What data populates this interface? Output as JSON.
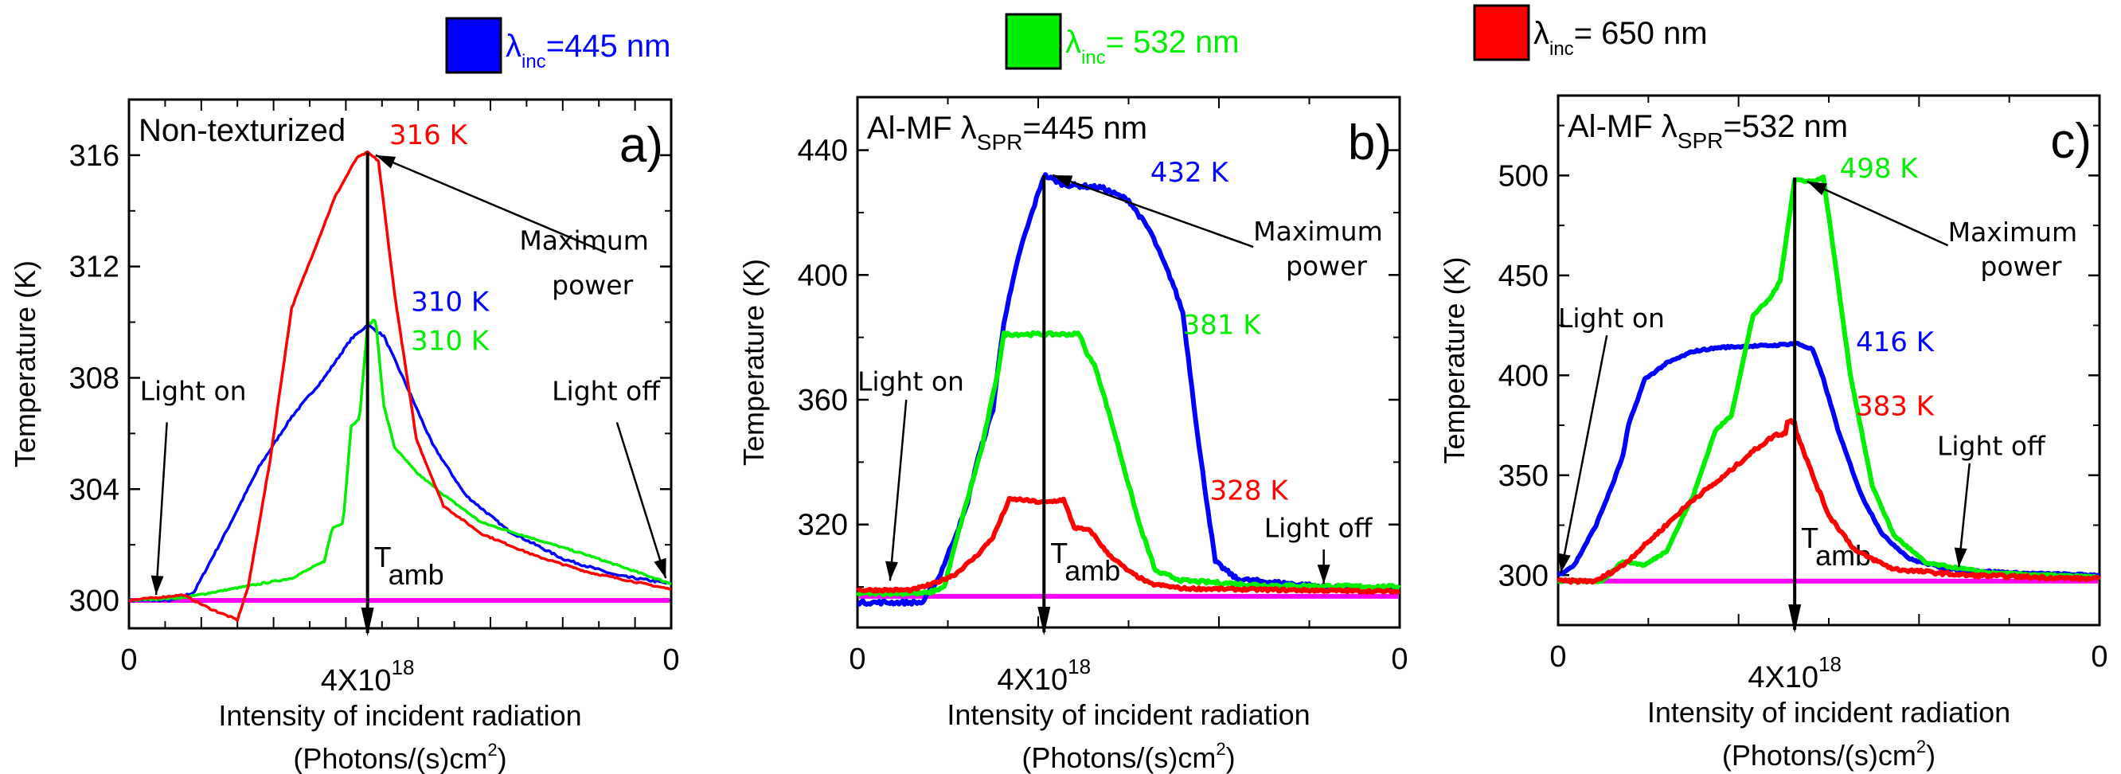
{
  "chart_data": [
    {
      "type": "line",
      "panel_letter": "a)",
      "title": "Non-texturized",
      "xlabel": "Intensity of incident radiation",
      "xlabel_units": "(Photons/(s)cm",
      "xlabel_units_sup": "2",
      "xlabel_units_end": ")",
      "ylabel": "Temperature (K)",
      "ylim": [
        299,
        318
      ],
      "yticks": [
        300,
        304,
        308,
        312,
        316
      ],
      "yminor": [
        302,
        306,
        310,
        314,
        318
      ],
      "xticks": [
        {
          "pos": 0,
          "label": "0"
        },
        {
          "pos": 0.44,
          "label": "4X10",
          "sup": "18"
        },
        {
          "pos": 1,
          "label": "0"
        }
      ],
      "xminor_count": 14,
      "peak_x": 0.44,
      "tamb": 300,
      "tamb_label": "T",
      "tamb_sub": "amb",
      "series": [
        {
          "name": "λinc=445 nm",
          "color": "#0000ff",
          "noise": 0.35,
          "points": [
            [
              0,
              300
            ],
            [
              0.08,
              300
            ],
            [
              0.12,
              300.3
            ],
            [
              0.18,
              302.5
            ],
            [
              0.24,
              304.8
            ],
            [
              0.3,
              306.6
            ],
            [
              0.36,
              308.0
            ],
            [
              0.41,
              309.4
            ],
            [
              0.44,
              309.9
            ],
            [
              0.47,
              309.5
            ],
            [
              0.51,
              307.8
            ],
            [
              0.56,
              305.6
            ],
            [
              0.62,
              303.8
            ],
            [
              0.7,
              302.5
            ],
            [
              0.8,
              301.5
            ],
            [
              0.9,
              300.9
            ],
            [
              1,
              300.6
            ]
          ]
        },
        {
          "name": "λinc=532 nm",
          "color": "#00ee00",
          "noise": 0.25,
          "points": [
            [
              0,
              300
            ],
            [
              0.1,
              300.1
            ],
            [
              0.3,
              300.8
            ],
            [
              0.34,
              301.2
            ],
            [
              0.36,
              301.4
            ],
            [
              0.375,
              302.6
            ],
            [
              0.395,
              302.8
            ],
            [
              0.41,
              306.3
            ],
            [
              0.425,
              306.5
            ],
            [
              0.44,
              309.9
            ],
            [
              0.455,
              310.1
            ],
            [
              0.47,
              307
            ],
            [
              0.49,
              305.5
            ],
            [
              0.53,
              304.6
            ],
            [
              0.58,
              303.8
            ],
            [
              0.65,
              302.8
            ],
            [
              0.75,
              302.2
            ],
            [
              0.85,
              301.6
            ],
            [
              1,
              300.6
            ]
          ]
        },
        {
          "name": "λinc=650 nm",
          "color": "#ff0000",
          "noise": 0.25,
          "points": [
            [
              0,
              300
            ],
            [
              0.1,
              300.2
            ],
            [
              0.15,
              299.7
            ],
            [
              0.2,
              299.3
            ],
            [
              0.22,
              300.5
            ],
            [
              0.26,
              305
            ],
            [
              0.3,
              310.5
            ],
            [
              0.34,
              312.5
            ],
            [
              0.38,
              314.5
            ],
            [
              0.42,
              315.9
            ],
            [
              0.44,
              316.1
            ],
            [
              0.46,
              315.8
            ],
            [
              0.49,
              311
            ],
            [
              0.53,
              305.8
            ],
            [
              0.58,
              303.4
            ],
            [
              0.65,
              302.4
            ],
            [
              0.75,
              301.6
            ],
            [
              0.85,
              301.0
            ],
            [
              1,
              300.4
            ]
          ]
        }
      ],
      "value_labels": [
        {
          "text": "316 K",
          "color": "#ff0000",
          "x": 0.48,
          "y": 316.4
        },
        {
          "text": "310 K",
          "color": "#0000ff",
          "x": 0.52,
          "y": 310.4
        },
        {
          "text": "310 K",
          "color": "#00ee00",
          "x": 0.52,
          "y": 309.0
        }
      ],
      "annotations": [
        {
          "text": "Maximum",
          "x": 0.72,
          "y": 312.6
        },
        {
          "text": "power",
          "x": 0.78,
          "y": 311.0
        },
        {
          "text": "Light on",
          "x": 0.02,
          "y": 307.2
        },
        {
          "text": "Light off",
          "x": 0.78,
          "y": 307.2
        }
      ],
      "arrows": [
        {
          "from": [
            0.88,
            312.5
          ],
          "to": [
            0.455,
            316.0
          ]
        },
        {
          "from": [
            0.07,
            306.4
          ],
          "to": [
            0.05,
            300.2
          ]
        },
        {
          "from": [
            0.9,
            306.4
          ],
          "to": [
            0.99,
            300.8
          ]
        }
      ]
    },
    {
      "type": "line",
      "panel_letter": "b)",
      "title": "Al-MF λ",
      "title_sub": "SPR",
      "title_end": "=445 nm",
      "xlabel": "Intensity of incident radiation",
      "xlabel_units": "(Photons/(s)cm",
      "xlabel_units_sup": "2",
      "xlabel_units_end": ")",
      "ylabel": "Temperature (K)",
      "ylim": [
        287,
        457
      ],
      "yticks": [
        320,
        360,
        400,
        440
      ],
      "yminor": [
        300,
        340,
        380,
        420
      ],
      "xticks": [
        {
          "pos": 0,
          "label": "0"
        },
        {
          "pos": 0.344,
          "label": "4X10",
          "sup": "18"
        },
        {
          "pos": 1,
          "label": "0"
        }
      ],
      "xminor_count": 5,
      "peak_x": 0.344,
      "tamb": 297,
      "tamb_label": "T",
      "tamb_sub": "amb",
      "series": [
        {
          "name": "λinc=445 nm",
          "color": "#0000ff",
          "noise": 0.6,
          "points": [
            [
              0,
              295
            ],
            [
              0.12,
              295
            ],
            [
              0.15,
              303
            ],
            [
              0.2,
              325
            ],
            [
              0.22,
              340
            ],
            [
              0.25,
              357
            ],
            [
              0.27,
              385
            ],
            [
              0.3,
              408
            ],
            [
              0.344,
              432
            ],
            [
              0.38,
              429
            ],
            [
              0.45,
              428
            ],
            [
              0.5,
              424
            ],
            [
              0.54,
              414
            ],
            [
              0.58,
              398
            ],
            [
              0.6,
              388
            ],
            [
              0.63,
              345
            ],
            [
              0.66,
              308
            ],
            [
              0.7,
              302.5
            ],
            [
              0.8,
              301
            ],
            [
              0.9,
              299.5
            ],
            [
              1,
              299
            ]
          ]
        },
        {
          "name": "λinc=532 nm",
          "color": "#00ee00",
          "noise": 0.5,
          "points": [
            [
              0,
              298
            ],
            [
              0.13,
              298
            ],
            [
              0.16,
              300
            ],
            [
              0.19,
              320
            ],
            [
              0.23,
              345
            ],
            [
              0.26,
              370
            ],
            [
              0.27,
              381
            ],
            [
              0.35,
              381
            ],
            [
              0.41,
              381
            ],
            [
              0.42,
              376
            ],
            [
              0.44,
              370
            ],
            [
              0.47,
              352
            ],
            [
              0.52,
              320
            ],
            [
              0.55,
              305
            ],
            [
              0.6,
              302
            ],
            [
              0.75,
              300.5
            ],
            [
              1,
              300
            ]
          ]
        },
        {
          "name": "λinc=650 nm",
          "color": "#ff0000",
          "noise": 0.4,
          "points": [
            [
              0,
              299
            ],
            [
              0.1,
              299
            ],
            [
              0.14,
              301
            ],
            [
              0.18,
              304
            ],
            [
              0.22,
              310
            ],
            [
              0.25,
              316
            ],
            [
              0.28,
              328
            ],
            [
              0.3,
              328
            ],
            [
              0.344,
              327
            ],
            [
              0.38,
              328
            ],
            [
              0.4,
              319
            ],
            [
              0.43,
              318
            ],
            [
              0.46,
              311
            ],
            [
              0.5,
              305
            ],
            [
              0.54,
              301
            ],
            [
              0.6,
              299.5
            ],
            [
              0.8,
              299
            ],
            [
              1,
              298.5
            ]
          ]
        }
      ],
      "value_labels": [
        {
          "text": "432 K",
          "color": "#0000ff",
          "x": 0.54,
          "y": 430
        },
        {
          "text": "381 K",
          "color": "#00ee00",
          "x": 0.6,
          "y": 381
        },
        {
          "text": "328 K",
          "color": "#ff0000",
          "x": 0.65,
          "y": 328
        }
      ],
      "annotations": [
        {
          "text": "Maximum",
          "x": 0.73,
          "y": 411
        },
        {
          "text": "power",
          "x": 0.79,
          "y": 400
        },
        {
          "text": "Light on",
          "x": 0.0,
          "y": 363
        },
        {
          "text": "Light off",
          "x": 0.75,
          "y": 316
        }
      ],
      "arrows": [
        {
          "from": [
            0.73,
            409
          ],
          "to": [
            0.36,
            432
          ]
        },
        {
          "from": [
            0.09,
            360
          ],
          "to": [
            0.06,
            302
          ]
        },
        {
          "from": [
            0.86,
            312
          ],
          "to": [
            0.86,
            301
          ]
        }
      ]
    },
    {
      "type": "line",
      "panel_letter": "c)",
      "title": "Al-MF λ",
      "title_sub": "SPR",
      "title_end": "=532 nm",
      "xlabel": "Intensity of incident radiation",
      "xlabel_units": "(Photons/(s)cm",
      "xlabel_units_sup": "2",
      "xlabel_units_end": ")",
      "ylabel": "Temperature (K)",
      "ylim": [
        275,
        540
      ],
      "yticks": [
        300,
        350,
        400,
        450,
        500
      ],
      "yminor": [
        325,
        375,
        425,
        475,
        525
      ],
      "xticks": [
        {
          "pos": 0,
          "label": "0"
        },
        {
          "pos": 0.437,
          "label": "4X10",
          "sup": "18"
        },
        {
          "pos": 1,
          "label": "0"
        }
      ],
      "xminor_count": 5,
      "peak_x": 0.437,
      "tamb": 297,
      "tamb_label": "T",
      "tamb_sub": "amb",
      "series": [
        {
          "name": "λinc=445 nm",
          "color": "#0000ff",
          "noise": 0.3,
          "points": [
            [
              0,
              300
            ],
            [
              0.03,
              305
            ],
            [
              0.07,
              325
            ],
            [
              0.1,
              345
            ],
            [
              0.12,
              360
            ],
            [
              0.13,
              375
            ],
            [
              0.16,
              398
            ],
            [
              0.2,
              406
            ],
            [
              0.25,
              412
            ],
            [
              0.3,
              414
            ],
            [
              0.4,
              415
            ],
            [
              0.44,
              416
            ],
            [
              0.47,
              413
            ],
            [
              0.49,
              398
            ],
            [
              0.52,
              370
            ],
            [
              0.56,
              340
            ],
            [
              0.6,
              320
            ],
            [
              0.65,
              308
            ],
            [
              0.72,
              303
            ],
            [
              0.85,
              301
            ],
            [
              1,
              300
            ]
          ]
        },
        {
          "name": "λinc=532 nm",
          "color": "#00ee00",
          "noise": 0.3,
          "points": [
            [
              0,
              297
            ],
            [
              0.08,
              297
            ],
            [
              0.12,
              307
            ],
            [
              0.16,
              305
            ],
            [
              0.2,
              312
            ],
            [
              0.25,
              340
            ],
            [
              0.29,
              372
            ],
            [
              0.32,
              380
            ],
            [
              0.36,
              430
            ],
            [
              0.39,
              438
            ],
            [
              0.41,
              447
            ],
            [
              0.437,
              498
            ],
            [
              0.47,
              497
            ],
            [
              0.49,
              499
            ],
            [
              0.51,
              460
            ],
            [
              0.54,
              400
            ],
            [
              0.58,
              345
            ],
            [
              0.62,
              320
            ],
            [
              0.68,
              306
            ],
            [
              0.8,
              301
            ],
            [
              1,
              299
            ]
          ]
        },
        {
          "name": "λinc=650 nm",
          "color": "#ff0000",
          "noise": 0.5,
          "points": [
            [
              0,
              297
            ],
            [
              0.07,
              297
            ],
            [
              0.12,
              305
            ],
            [
              0.18,
              320
            ],
            [
              0.25,
              338
            ],
            [
              0.3,
              348
            ],
            [
              0.36,
              362
            ],
            [
              0.4,
              370
            ],
            [
              0.42,
              371
            ],
            [
              0.42,
              377
            ],
            [
              0.437,
              377
            ],
            [
              0.437,
              383
            ],
            [
              0.44,
              372
            ],
            [
              0.47,
              350
            ],
            [
              0.5,
              330
            ],
            [
              0.55,
              312
            ],
            [
              0.62,
              303
            ],
            [
              0.75,
              300
            ],
            [
              1,
              298
            ]
          ]
        }
      ],
      "value_labels": [
        {
          "text": "498 K",
          "color": "#00ee00",
          "x": 0.52,
          "y": 499
        },
        {
          "text": "416 K",
          "color": "#0000ff",
          "x": 0.55,
          "y": 412
        },
        {
          "text": "383 K",
          "color": "#ff0000",
          "x": 0.55,
          "y": 380
        }
      ],
      "annotations": [
        {
          "text": "Maximum",
          "x": 0.72,
          "y": 467
        },
        {
          "text": "power",
          "x": 0.78,
          "y": 450
        },
        {
          "text": "Light on",
          "x": 0.0,
          "y": 424
        },
        {
          "text": "Light off",
          "x": 0.7,
          "y": 360
        }
      ],
      "arrows": [
        {
          "from": [
            0.72,
            465
          ],
          "to": [
            0.46,
            497
          ]
        },
        {
          "from": [
            0.09,
            420
          ],
          "to": [
            0.005,
            301
          ]
        },
        {
          "from": [
            0.76,
            356
          ],
          "to": [
            0.74,
            304
          ]
        }
      ]
    }
  ],
  "legend": [
    {
      "label_main": "λ",
      "label_sub": "inc",
      "label_end": "=445 nm",
      "color": "#0000ff",
      "text_color": "#0000ff"
    },
    {
      "label_main": "λ",
      "label_sub": "inc",
      "label_end": "= 532 nm",
      "color": "#00ee00",
      "text_color": "#00ee00"
    },
    {
      "label_main": "λ",
      "label_sub": "inc",
      "label_end": "= 650 nm",
      "color": "#ff0000",
      "text_color": "#000000"
    }
  ],
  "colors": {
    "tamb": "#ff00ff",
    "axis": "#000000"
  }
}
